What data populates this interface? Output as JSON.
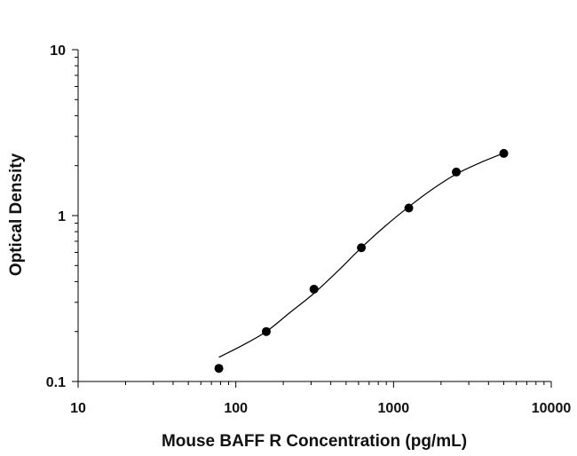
{
  "chart_data": {
    "type": "scatter",
    "xlabel": "Mouse BAFF R Concentration (pg/mL)",
    "ylabel": "Optical Density",
    "xscale": "log",
    "yscale": "log",
    "xlim": [
      10,
      10000
    ],
    "ylim": [
      0.1,
      10
    ],
    "xticks": [
      "10",
      "100",
      "1000",
      "10000"
    ],
    "yticks": [
      "0.1",
      "1",
      "10"
    ],
    "grid": false,
    "legend": "none",
    "marker_color": "#000000",
    "series": [
      {
        "x": [
          78.1,
          156,
          313,
          625,
          1250,
          2500,
          5000
        ],
        "y": [
          0.12,
          0.2,
          0.36,
          0.64,
          1.11,
          1.83,
          2.37
        ]
      }
    ],
    "fit_curve": {
      "x": [
        78.1,
        110,
        156,
        220,
        313,
        440,
        625,
        880,
        1250,
        1760,
        2500,
        3530,
        5000
      ],
      "y": [
        0.14,
        0.165,
        0.2,
        0.26,
        0.34,
        0.46,
        0.64,
        0.86,
        1.13,
        1.44,
        1.78,
        2.08,
        2.38
      ]
    }
  }
}
